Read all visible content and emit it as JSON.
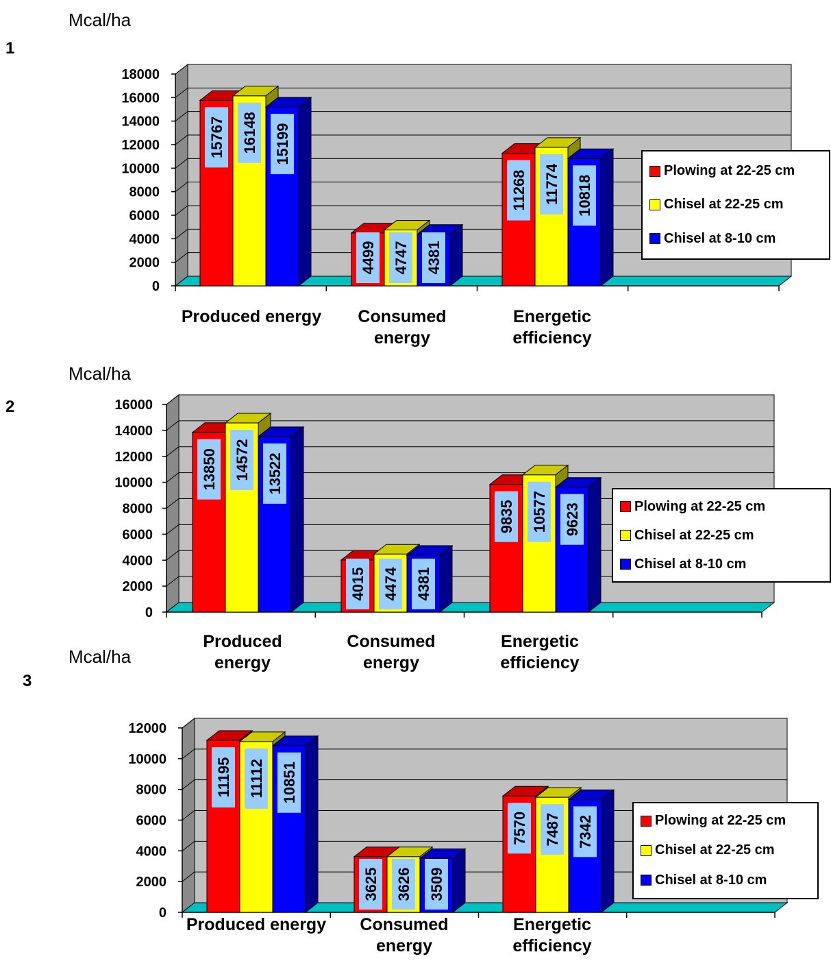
{
  "chart_data": [
    {
      "type": "bar",
      "panel_number": "1",
      "unit_label": "Mcal/ha",
      "categories": [
        [
          "Produced energy"
        ],
        [
          "Consumed",
          "energy"
        ],
        [
          "Energetic",
          "efficiency"
        ]
      ],
      "yticks": [
        "0",
        "2000",
        "4000",
        "6000",
        "8000",
        "10000",
        "12000",
        "14000",
        "16000",
        "18000"
      ],
      "ylim": [
        0,
        18000
      ],
      "series": [
        {
          "name": "Plowing at 22-25 cm",
          "color": "#ff0000",
          "values": [
            15767,
            4499,
            11268
          ]
        },
        {
          "name": "Chisel at 22-25 cm",
          "color": "#ffff00",
          "values": [
            16148,
            4747,
            11774
          ]
        },
        {
          "name": "Chisel at 8-10 cm",
          "color": "#0000ff",
          "values": [
            15199,
            4381,
            10818
          ]
        }
      ],
      "data_labels": [
        [
          "15767",
          "16148",
          "15199"
        ],
        [
          "4499",
          "4747",
          "4381"
        ],
        [
          "11268",
          "11774",
          "10818"
        ]
      ],
      "grid": true,
      "legend": "right"
    },
    {
      "type": "bar",
      "panel_number": "2",
      "unit_label": "Mcal/ha",
      "categories": [
        [
          "Produced",
          "energy"
        ],
        [
          "Consumed",
          "energy"
        ],
        [
          "Energetic",
          "efficiency"
        ]
      ],
      "yticks": [
        "0",
        "2000",
        "4000",
        "6000",
        "8000",
        "10000",
        "12000",
        "14000",
        "16000"
      ],
      "ylim": [
        0,
        16000
      ],
      "series": [
        {
          "name": "Plowing at 22-25 cm",
          "color": "#ff0000",
          "values": [
            13850,
            4015,
            9835
          ]
        },
        {
          "name": "Chisel at 22-25 cm",
          "color": "#ffff00",
          "values": [
            14572,
            4474,
            10577
          ]
        },
        {
          "name": "Chisel at 8-10 cm",
          "color": "#0000ff",
          "values": [
            13522,
            4381,
            9623
          ]
        }
      ],
      "data_labels": [
        [
          "13850",
          "14572",
          "13522"
        ],
        [
          "4015",
          "4474",
          "4381"
        ],
        [
          "9835",
          "10577",
          "9623"
        ]
      ],
      "grid": true,
      "legend": "right"
    },
    {
      "type": "bar",
      "panel_number": "3",
      "unit_label": "Mcal/ha",
      "categories": [
        [
          "Produced energy"
        ],
        [
          "Consumed",
          "energy"
        ],
        [
          "Energetic",
          "efficiency"
        ]
      ],
      "yticks": [
        "0",
        "2000",
        "4000",
        "6000",
        "8000",
        "10000",
        "12000"
      ],
      "ylim": [
        0,
        12000
      ],
      "series": [
        {
          "name": "Plowing at 22-25 cm",
          "color": "#ff0000",
          "values": [
            11195,
            3625,
            7570
          ]
        },
        {
          "name": "Chisel at 22-25 cm",
          "color": "#ffff00",
          "values": [
            11112,
            3626,
            7487
          ]
        },
        {
          "name": "Chisel at 8-10 cm",
          "color": "#0000ff",
          "values": [
            10851,
            3509,
            7342
          ]
        }
      ],
      "data_labels": [
        [
          "11195",
          "11112",
          "10851"
        ],
        [
          "3625",
          "3626",
          "3509"
        ],
        [
          "7570",
          "7487",
          "7342"
        ]
      ],
      "grid": true,
      "legend": "right"
    }
  ]
}
